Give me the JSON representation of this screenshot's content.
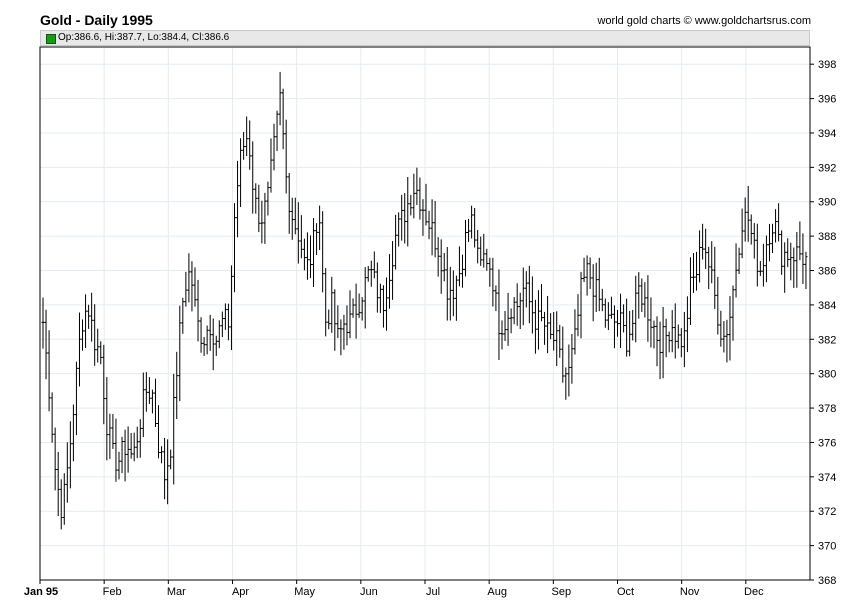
{
  "header": {
    "title": "Gold - Daily 1995",
    "credit": "world gold charts © www.goldchartsrus.com"
  },
  "legend": {
    "text": "Op:386.6, Hi:387.7, Lo:384.4, Cl:386.6",
    "swatch_color": "#1a9a1a"
  },
  "chart_data": {
    "type": "ohlc",
    "title": "Gold - Daily 1995",
    "ylim": [
      368,
      399
    ],
    "grid": true,
    "y_ticks": [
      368,
      370,
      372,
      374,
      376,
      378,
      380,
      382,
      384,
      386,
      388,
      390,
      392,
      394,
      396,
      398
    ],
    "x_ticks": [
      "Jan 95",
      "Feb",
      "Mar",
      "Apr",
      "May",
      "Jun",
      "Jul",
      "Aug",
      "Sep",
      "Oct",
      "Nov",
      "Dec"
    ],
    "monthly_close_path": [
      {
        "month": "Jan 95",
        "values": [
          383,
          379,
          374,
          372,
          375,
          379,
          383,
          384,
          382,
          381
        ]
      },
      {
        "month": "Feb",
        "values": [
          377,
          375,
          375,
          376,
          375,
          377,
          379,
          379,
          376,
          374
        ]
      },
      {
        "month": "Mar",
        "values": [
          376,
          381,
          385,
          386,
          383,
          382,
          383,
          382,
          383,
          383
        ]
      },
      {
        "month": "Apr",
        "values": [
          390,
          393,
          394,
          390,
          389,
          390,
          393,
          396,
          391,
          389
        ]
      },
      {
        "month": "May",
        "values": [
          388,
          386,
          387,
          390,
          383,
          384,
          382,
          383,
          383,
          384
        ]
      },
      {
        "month": "Jun",
        "values": [
          385,
          386,
          385,
          384,
          386,
          388,
          389,
          390,
          391,
          390
        ]
      },
      {
        "month": "Jul",
        "values": [
          389,
          388,
          387,
          385,
          385,
          386,
          388,
          389,
          386,
          387
        ]
      },
      {
        "month": "Aug",
        "values": [
          386,
          383,
          383,
          384,
          384,
          385,
          384,
          383,
          383,
          382
        ]
      },
      {
        "month": "Sep",
        "values": [
          382,
          380,
          380,
          382,
          385,
          386,
          385,
          384,
          383,
          383
        ]
      },
      {
        "month": "Oct",
        "values": [
          383,
          382,
          383,
          385,
          384,
          383,
          382,
          382,
          383,
          382
        ]
      },
      {
        "month": "Nov",
        "values": [
          382,
          385,
          386,
          388,
          386,
          384,
          382,
          383,
          386,
          389
        ]
      },
      {
        "month": "Dec",
        "values": [
          389,
          387,
          386,
          388,
          389,
          387,
          387,
          387,
          387,
          386.6
        ]
      }
    ]
  }
}
